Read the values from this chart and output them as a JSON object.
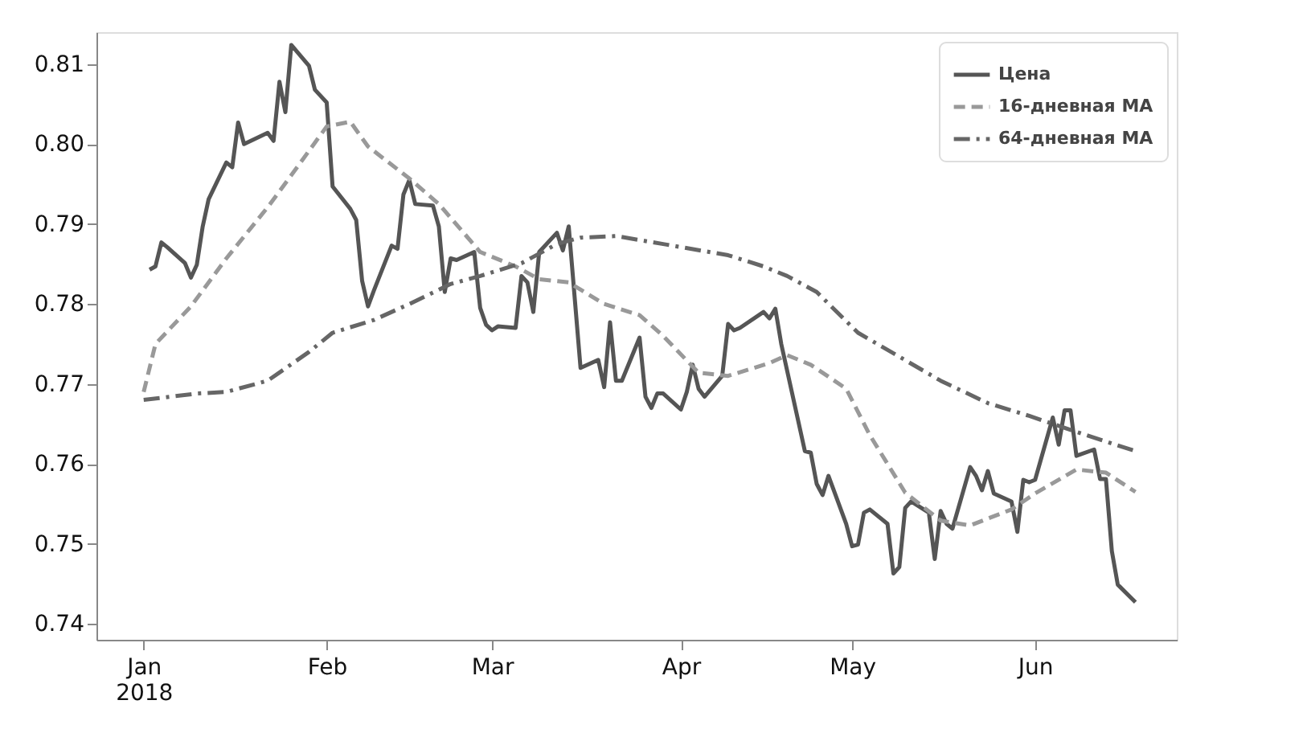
{
  "chart_data": {
    "type": "line",
    "xlim": [
      "2017-12-24",
      "2018-06-25"
    ],
    "xticks": [
      {
        "value": "2018-01-01",
        "label": "Jan\n2018"
      },
      {
        "value": "2018-02-01",
        "label": "Feb"
      },
      {
        "value": "2018-03-01",
        "label": "Mar"
      },
      {
        "value": "2018-04-02",
        "label": "Apr"
      },
      {
        "value": "2018-05-01",
        "label": "May"
      },
      {
        "value": "2018-06-01",
        "label": "Jun"
      }
    ],
    "ylim": [
      0.738,
      0.814
    ],
    "yticks": [
      0.74,
      0.75,
      0.76,
      0.77,
      0.78,
      0.79,
      {
        "value": 0.8,
        "label": "0.80"
      },
      0.81
    ],
    "grid": false,
    "legend": "top right",
    "marker": "none",
    "series": [
      {
        "name": "Цена",
        "color": "#555555",
        "line_style": "solid",
        "x": [
          "2018-01-02",
          "2018-01-03",
          "2018-01-04",
          "2018-01-05",
          "2018-01-08",
          "2018-01-09",
          "2018-01-10",
          "2018-01-11",
          "2018-01-12",
          "2018-01-15",
          "2018-01-16",
          "2018-01-17",
          "2018-01-18",
          "2018-01-22",
          "2018-01-23",
          "2018-01-24",
          "2018-01-25",
          "2018-01-26",
          "2018-01-29",
          "2018-01-30",
          "2018-02-01",
          "2018-02-02",
          "2018-02-05",
          "2018-02-06",
          "2018-02-07",
          "2018-02-08",
          "2018-02-09",
          "2018-02-12",
          "2018-02-13",
          "2018-02-14",
          "2018-02-15",
          "2018-02-16",
          "2018-02-19",
          "2018-02-20",
          "2018-02-21",
          "2018-02-22",
          "2018-02-23",
          "2018-02-26",
          "2018-02-27",
          "2018-02-28",
          "2018-03-01",
          "2018-03-02",
          "2018-03-05",
          "2018-03-06",
          "2018-03-07",
          "2018-03-08",
          "2018-03-09",
          "2018-03-12",
          "2018-03-13",
          "2018-03-14",
          "2018-03-16",
          "2018-03-19",
          "2018-03-20",
          "2018-03-21",
          "2018-03-22",
          "2018-03-23",
          "2018-03-26",
          "2018-03-27",
          "2018-03-28",
          "2018-03-29",
          "2018-03-30",
          "2018-04-02",
          "2018-04-03",
          "2018-04-04",
          "2018-04-05",
          "2018-04-06",
          "2018-04-09",
          "2018-04-10",
          "2018-04-11",
          "2018-04-12",
          "2018-04-16",
          "2018-04-17",
          "2018-04-18",
          "2018-04-19",
          "2018-04-23",
          "2018-04-24",
          "2018-04-25",
          "2018-04-26",
          "2018-04-27",
          "2018-04-30",
          "2018-05-01",
          "2018-05-02",
          "2018-05-03",
          "2018-05-04",
          "2018-05-07",
          "2018-05-08",
          "2018-05-09",
          "2018-05-10",
          "2018-05-11",
          "2018-05-14",
          "2018-05-15",
          "2018-05-16",
          "2018-05-17",
          "2018-05-18",
          "2018-05-21",
          "2018-05-22",
          "2018-05-23",
          "2018-05-24",
          "2018-05-25",
          "2018-05-28",
          "2018-05-29",
          "2018-05-30",
          "2018-05-31",
          "2018-06-01",
          "2018-06-04",
          "2018-06-05",
          "2018-06-06",
          "2018-06-07",
          "2018-06-08",
          "2018-06-11",
          "2018-06-12",
          "2018-06-13",
          "2018-06-14",
          "2018-06-15",
          "2018-06-18"
        ],
        "values": [
          0.7843,
          0.7847,
          0.7877,
          0.7871,
          0.7851,
          0.7833,
          0.7849,
          0.7897,
          0.7931,
          0.7977,
          0.7971,
          0.8027,
          0.8,
          0.8014,
          0.8004,
          0.8078,
          0.804,
          0.8124,
          0.8098,
          0.8068,
          0.8052,
          0.7947,
          0.7919,
          0.7905,
          0.7829,
          0.7797,
          0.7817,
          0.7873,
          0.7869,
          0.7937,
          0.7955,
          0.7925,
          0.7923,
          0.7897,
          0.7815,
          0.7857,
          0.7855,
          0.7865,
          0.7795,
          0.7774,
          0.7767,
          0.7772,
          0.777,
          0.7835,
          0.7827,
          0.779,
          0.7865,
          0.7889,
          0.7867,
          0.7897,
          0.772,
          0.773,
          0.7696,
          0.7777,
          0.7704,
          0.7704,
          0.7758,
          0.7684,
          0.767,
          0.7688,
          0.7688,
          0.7668,
          0.769,
          0.7724,
          0.7694,
          0.7684,
          0.771,
          0.7775,
          0.7767,
          0.777,
          0.779,
          0.7782,
          0.7794,
          0.775,
          0.7616,
          0.7614,
          0.7575,
          0.7561,
          0.7585,
          0.7525,
          0.7497,
          0.7499,
          0.7539,
          0.7543,
          0.7525,
          0.7463,
          0.7471,
          0.7545,
          0.7553,
          0.7539,
          0.7481,
          0.7541,
          0.7525,
          0.7519,
          0.7596,
          0.7585,
          0.7567,
          0.7591,
          0.7563,
          0.7553,
          0.7515,
          0.758,
          0.7577,
          0.758,
          0.7658,
          0.7624,
          0.7667,
          0.7667,
          0.761,
          0.7618,
          0.7581,
          0.7581,
          0.7491,
          0.7449,
          0.7427
        ]
      },
      {
        "name": "16-дневная MA",
        "color": "#999999",
        "line_style": "dashed",
        "x": [
          "2018-01-01",
          "2018-01-03",
          "2018-01-09",
          "2018-01-15",
          "2018-01-22",
          "2018-01-26",
          "2018-02-01",
          "2018-02-05",
          "2018-02-08",
          "2018-02-15",
          "2018-02-20",
          "2018-02-27",
          "2018-03-05",
          "2018-03-09",
          "2018-03-14",
          "2018-03-20",
          "2018-03-26",
          "2018-03-30",
          "2018-04-05",
          "2018-04-10",
          "2018-04-17",
          "2018-04-20",
          "2018-04-24",
          "2018-04-30",
          "2018-05-04",
          "2018-05-10",
          "2018-05-16",
          "2018-05-21",
          "2018-05-28",
          "2018-06-01",
          "2018-06-08",
          "2018-06-13",
          "2018-06-18"
        ],
        "values": [
          0.769,
          0.775,
          0.7797,
          0.7857,
          0.7921,
          0.7961,
          0.8022,
          0.8028,
          0.7997,
          0.7957,
          0.7925,
          0.7865,
          0.7847,
          0.7831,
          0.7827,
          0.78,
          0.7786,
          0.776,
          0.7714,
          0.771,
          0.7726,
          0.7736,
          0.7724,
          0.7694,
          0.7636,
          0.7564,
          0.7529,
          0.7523,
          0.7543,
          0.7563,
          0.7593,
          0.7589,
          0.7565
        ]
      },
      {
        "name": "64-дневная MA",
        "color": "#666666",
        "line_style": "dashdot",
        "x": [
          "2018-01-01",
          "2018-01-10",
          "2018-01-15",
          "2018-01-22",
          "2018-01-29",
          "2018-02-02",
          "2018-02-09",
          "2018-02-15",
          "2018-02-22",
          "2018-02-27",
          "2018-03-06",
          "2018-03-12",
          "2018-03-16",
          "2018-03-22",
          "2018-03-30",
          "2018-04-10",
          "2018-04-16",
          "2018-04-20",
          "2018-04-25",
          "2018-05-02",
          "2018-05-09",
          "2018-05-16",
          "2018-05-24",
          "2018-05-31",
          "2018-06-08",
          "2018-06-18"
        ],
        "values": [
          0.768,
          0.7688,
          0.769,
          0.7704,
          0.774,
          0.7764,
          0.778,
          0.78,
          0.7825,
          0.7835,
          0.7851,
          0.7875,
          0.7883,
          0.7885,
          0.7875,
          0.7861,
          0.7847,
          0.7835,
          0.7815,
          0.7764,
          0.7734,
          0.7704,
          0.7676,
          0.766,
          0.764,
          0.7616
        ]
      }
    ]
  }
}
